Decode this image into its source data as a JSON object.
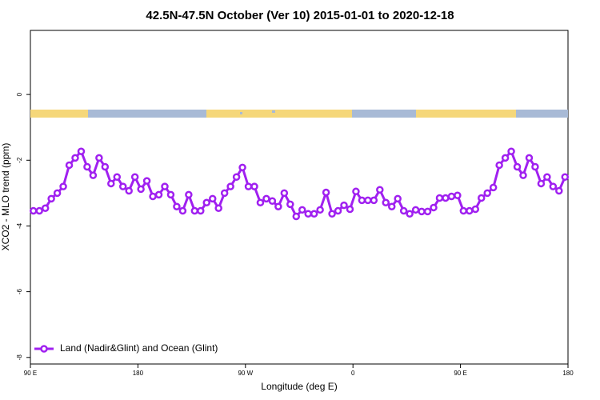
{
  "chart_data": {
    "type": "line",
    "title": "42.5N-47.5N October (Ver 10)   2015-01-01 to 2020-12-18",
    "x_label": "Longitude (deg E)",
    "y_label": "XCO2 - MLO trend (ppm)",
    "xlim": [
      90,
      540
    ],
    "xticks": [
      {
        "value": 90,
        "label": "90 E"
      },
      {
        "value": 180,
        "label": "180"
      },
      {
        "value": 270,
        "label": "90 W"
      },
      {
        "value": 360,
        "label": "0"
      },
      {
        "value": 450,
        "label": "90 E"
      },
      {
        "value": 540,
        "label": "180"
      }
    ],
    "ylim": [
      -8.2,
      1.95
    ],
    "yticks": [
      -8,
      -6,
      -4,
      -2,
      0
    ],
    "legend_position": "bottom-left",
    "x": [
      92.5,
      97.5,
      102.5,
      107.5,
      112.5,
      117.5,
      122.5,
      127.5,
      132.5,
      137.5,
      142.5,
      147.5,
      152.5,
      157.5,
      162.5,
      167.5,
      172.5,
      177.5,
      182.5,
      187.5,
      192.5,
      197.5,
      202.5,
      207.5,
      212.5,
      217.5,
      222.5,
      227.5,
      232.5,
      237.5,
      242.5,
      247.5,
      252.5,
      257.5,
      262.5,
      267.5,
      272.5,
      277.5,
      282.5,
      287.5,
      292.5,
      297.5,
      302.5,
      307.5,
      312.5,
      317.5,
      322.5,
      327.5,
      332.5,
      337.5,
      342.5,
      347.5,
      352.5,
      357.5,
      362.5,
      367.5,
      372.5,
      377.5,
      382.5,
      387.5,
      392.5,
      397.5,
      402.5,
      407.5,
      412.5,
      417.5,
      422.5,
      427.5,
      432.5,
      437.5,
      442.5,
      447.5,
      452.5,
      457.5,
      462.5,
      467.5,
      472.5,
      477.5,
      482.5,
      487.5,
      492.5,
      497.5,
      502.5,
      507.5,
      512.5,
      517.5,
      522.5,
      527.5,
      532.5,
      537.5
    ],
    "series": [
      {
        "name": "Land (Nadir&Glint) and Ocean (Glint)",
        "color": "#a020f0",
        "values": [
          -3.54,
          -3.54,
          -3.46,
          -3.17,
          -3.0,
          -2.8,
          -2.15,
          -1.93,
          -1.73,
          -2.2,
          -2.46,
          -1.93,
          -2.2,
          -2.71,
          -2.51,
          -2.8,
          -2.93,
          -2.51,
          -2.88,
          -2.63,
          -3.1,
          -3.05,
          -2.8,
          -3.05,
          -3.41,
          -3.54,
          -3.05,
          -3.54,
          -3.54,
          -3.29,
          -3.17,
          -3.46,
          -3.0,
          -2.8,
          -2.51,
          -2.22,
          -2.8,
          -2.8,
          -3.29,
          -3.17,
          -3.24,
          -3.41,
          -3.0,
          -3.34,
          -3.71,
          -3.51,
          -3.63,
          -3.63,
          -3.51,
          -2.98,
          -3.63,
          -3.54,
          -3.37,
          -3.49,
          -2.95,
          -3.22,
          -3.22,
          -3.22,
          -2.9,
          -3.29,
          -3.41,
          -3.17,
          -3.54,
          -3.63,
          -3.51,
          -3.56,
          -3.56,
          -3.44,
          -3.15,
          -3.15,
          -3.1,
          -3.07,
          -3.54,
          -3.54,
          -3.49,
          -3.15,
          -3.0,
          -2.83,
          -2.15,
          -1.93,
          -1.73,
          -2.2,
          -2.46,
          -1.93,
          -2.2,
          -2.71,
          -2.51,
          -2.8,
          -2.93,
          -2.51
        ]
      }
    ]
  }
}
